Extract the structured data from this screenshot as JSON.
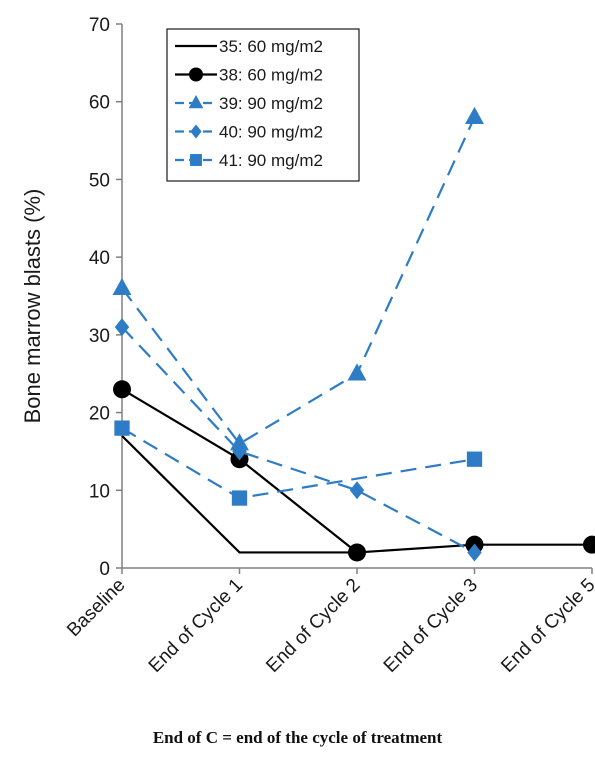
{
  "chart_data": {
    "type": "line",
    "title": "",
    "xlabel": "",
    "ylabel": "Bone marrow blasts (%)",
    "categories": [
      "Baseline",
      "End of Cycle 1",
      "End of Cycle 2",
      "End of Cycle 3",
      "End of Cycle 5"
    ],
    "ylim": [
      0,
      70
    ],
    "yticks": [
      0,
      10,
      20,
      30,
      40,
      50,
      60,
      70
    ],
    "grid": false,
    "legend_position": "top-center",
    "series": [
      {
        "name": "35: 60 mg/m2",
        "color": "#000000",
        "dash": "solid",
        "marker": "none",
        "values": [
          17,
          2,
          2,
          null,
          null
        ]
      },
      {
        "name": "38: 60 mg/m2",
        "color": "#000000",
        "dash": "solid",
        "marker": "circle",
        "values": [
          23,
          14,
          2,
          3,
          3
        ]
      },
      {
        "name": "39: 90 mg/m2",
        "color": "#2e7cc6",
        "dash": "dashed",
        "marker": "triangle",
        "values": [
          36,
          16,
          25,
          58,
          null
        ]
      },
      {
        "name": "40: 90 mg/m2",
        "color": "#2e7cc6",
        "dash": "dashed",
        "marker": "diamond",
        "values": [
          31,
          15,
          10,
          2,
          null
        ]
      },
      {
        "name": "41: 90 mg/m2",
        "color": "#2e7cc6",
        "dash": "dashed",
        "marker": "square",
        "values": [
          18,
          9,
          null,
          14,
          null
        ]
      }
    ]
  },
  "caption": "End of C = end of the cycle of treatment"
}
